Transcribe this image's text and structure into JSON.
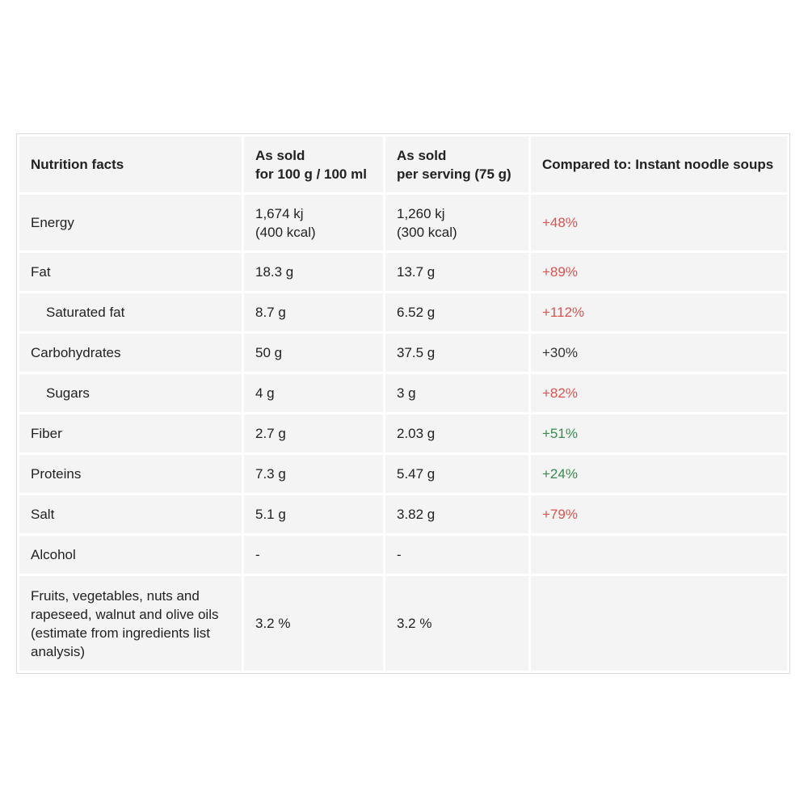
{
  "header": {
    "col1": "Nutrition facts",
    "col2_line1": "As sold",
    "col2_line2": "for 100 g / 100 ml",
    "col3_line1": "As sold",
    "col3_line2": "per serving (75 g)",
    "col4": "Compared to: Instant noodle soups"
  },
  "rows": [
    {
      "name": "Energy",
      "per100_l1": "1,674 kj",
      "per100_l2": "(400 kcal)",
      "serv_l1": "1,260 kj",
      "serv_l2": "(300 kcal)",
      "compare": "+48%",
      "compare_color": "#d9534f"
    },
    {
      "name": "Fat",
      "per100": "18.3 g",
      "serving": "13.7 g",
      "compare": "+89%",
      "compare_color": "#d9534f"
    },
    {
      "name": "Saturated fat",
      "per100": "8.7 g",
      "serving": "6.52 g",
      "compare": "+112%",
      "compare_color": "#d9534f"
    },
    {
      "name": "Carbohydrates",
      "per100": "50 g",
      "serving": "37.5 g",
      "compare": "+30%",
      "compare_color": "#333333"
    },
    {
      "name": "Sugars",
      "per100": "4 g",
      "serving": "3 g",
      "compare": "+82%",
      "compare_color": "#d9534f"
    },
    {
      "name": "Fiber",
      "per100": "2.7 g",
      "serving": "2.03 g",
      "compare": "+51%",
      "compare_color": "#3a8a4f"
    },
    {
      "name": "Proteins",
      "per100": "7.3 g",
      "serving": "5.47 g",
      "compare": "+24%",
      "compare_color": "#3a8a4f"
    },
    {
      "name": "Salt",
      "per100": "5.1 g",
      "serving": "3.82 g",
      "compare": "+79%",
      "compare_color": "#d9534f"
    },
    {
      "name": "Alcohol",
      "per100": "-",
      "serving": "-",
      "compare": ""
    },
    {
      "name": "Fruits, vegetables, nuts and rapeseed, walnut and olive oils (estimate from ingredients list analysis)",
      "per100": "3.2 %",
      "serving": "3.2 %",
      "compare": ""
    }
  ]
}
